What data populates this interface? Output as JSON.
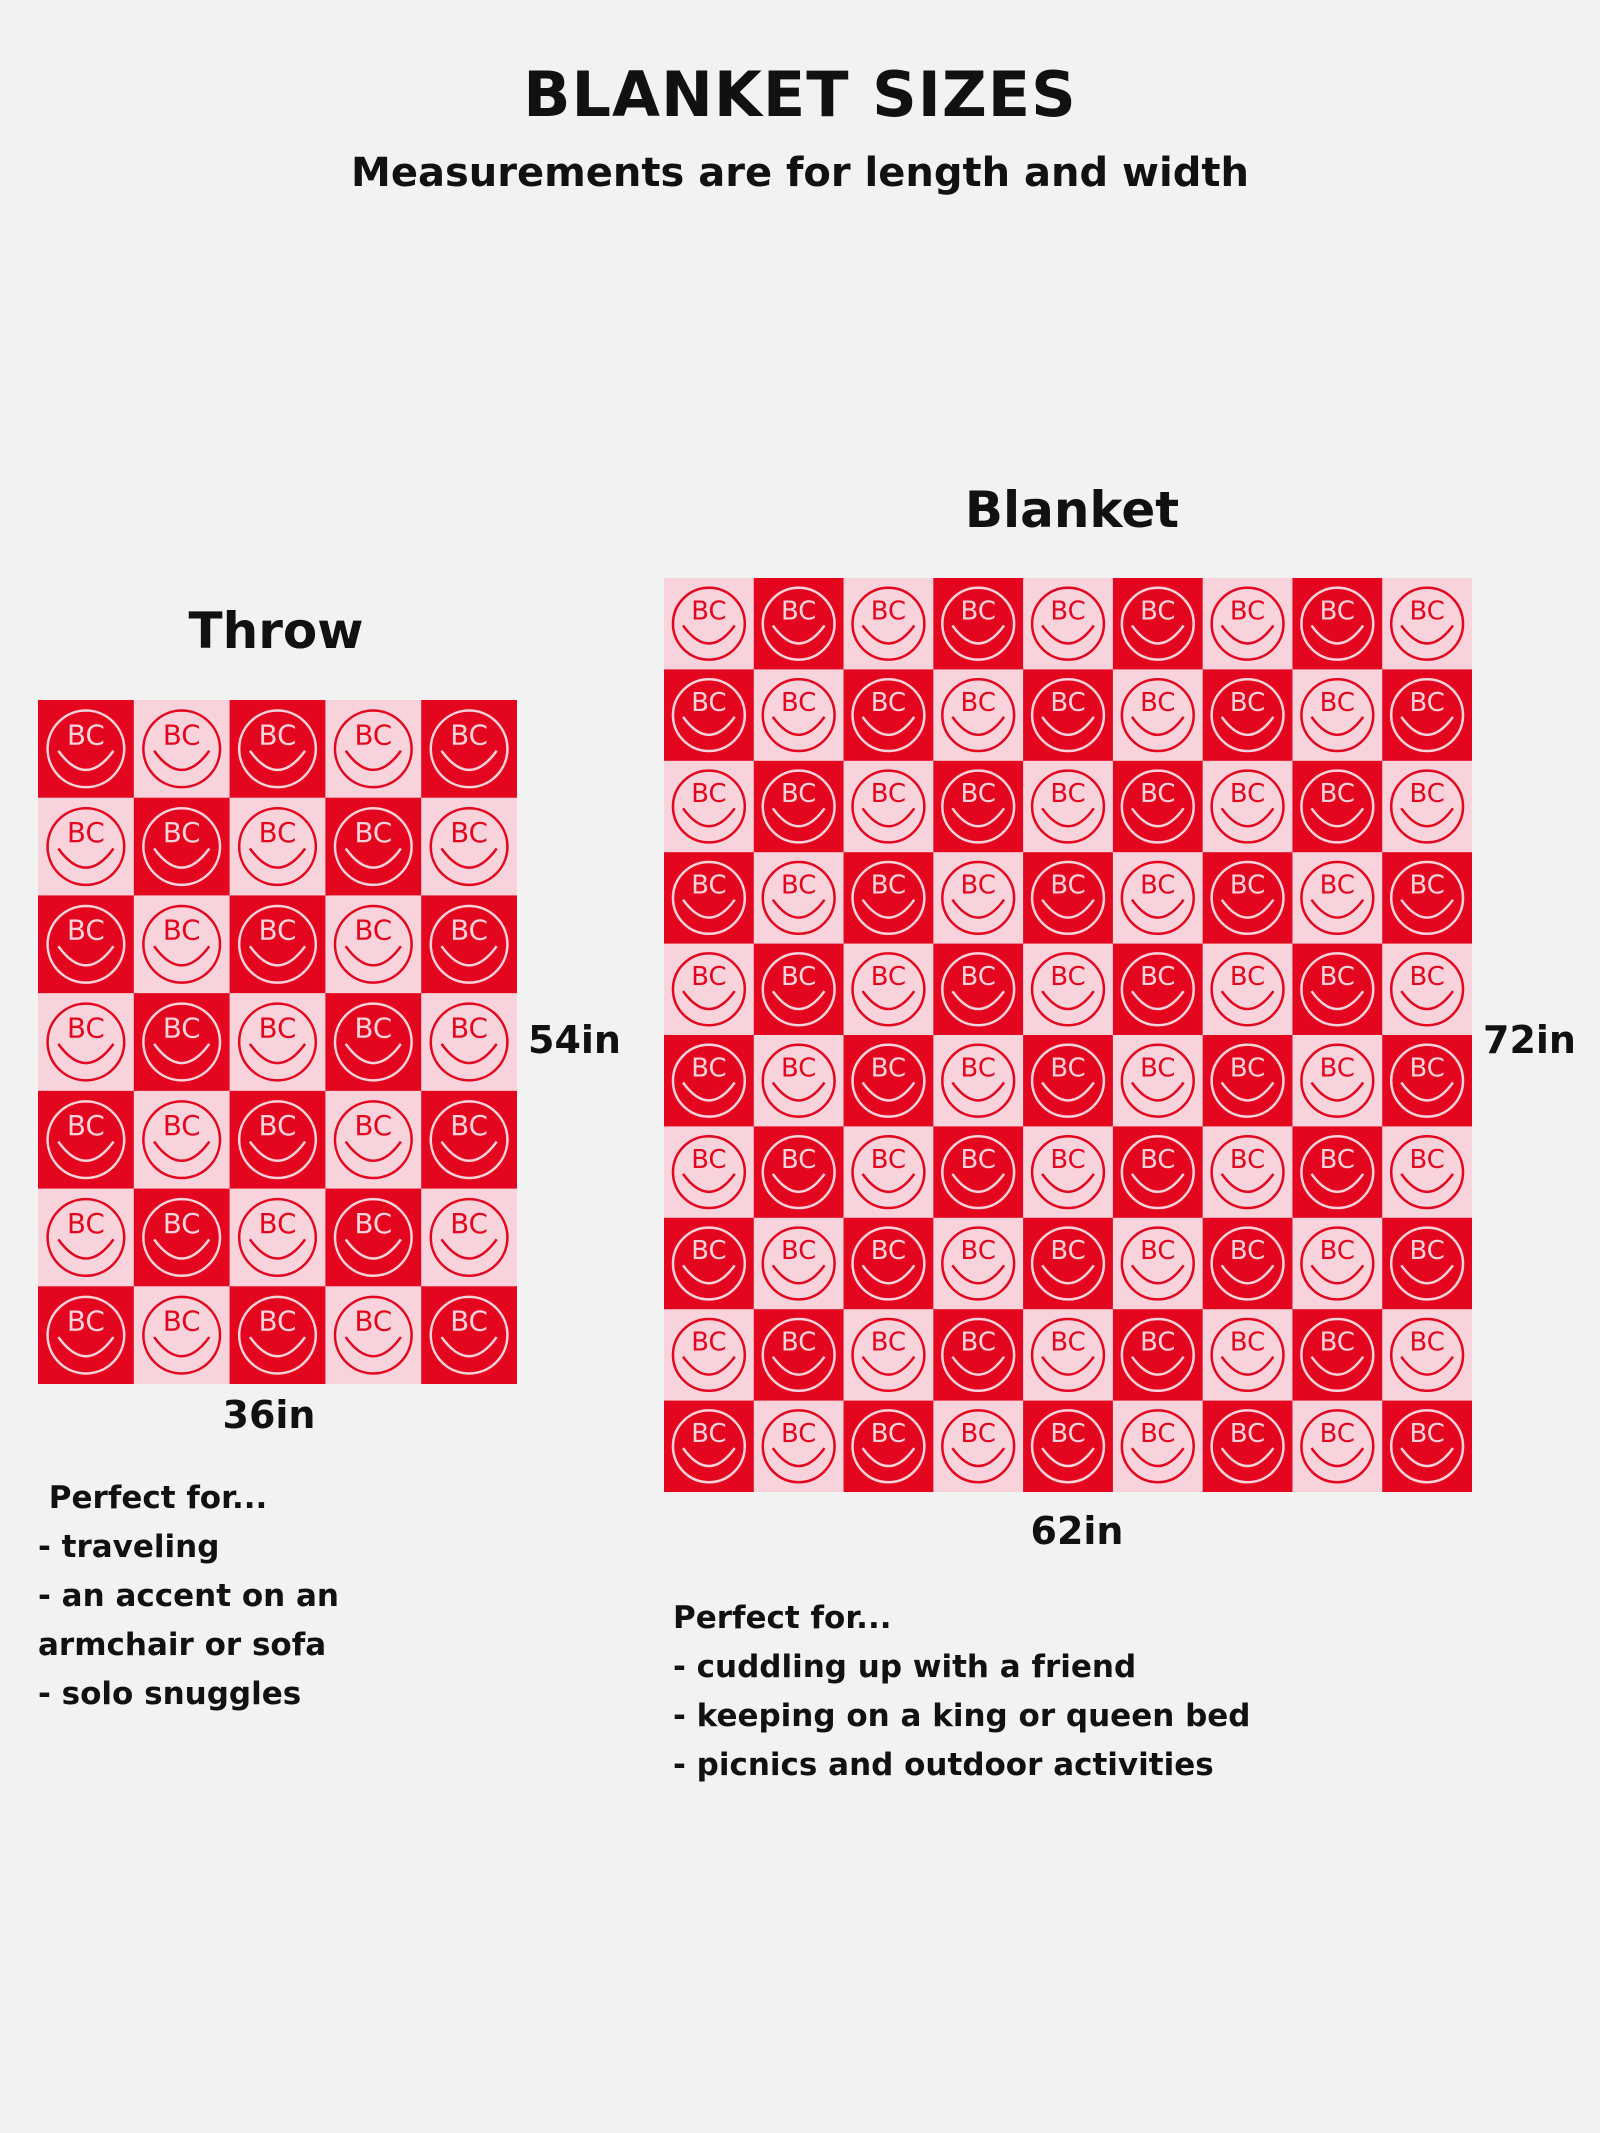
{
  "header": {
    "title": "BLANKET SIZES",
    "subtitle": "Measurements are for length and width"
  },
  "colors": {
    "red": "#e3061e",
    "pink": "#f9d3db",
    "text": "#111111",
    "background": "#f2f2f2"
  },
  "tile_text": "BC",
  "products": [
    {
      "name": "Throw",
      "length": "54in",
      "width": "36in",
      "grid": {
        "cols": 5,
        "rows": 7,
        "first_tile": "red"
      },
      "list_heading": " Perfect for...",
      "uses": [
        "- traveling",
        "- an accent on an",
        "armchair or sofa",
        "- solo snuggles"
      ]
    },
    {
      "name": "Blanket",
      "length": "72in",
      "width": "62in",
      "grid": {
        "cols": 9,
        "rows": 10,
        "first_tile": "pink"
      },
      "list_heading": "Perfect for...",
      "uses": [
        "- cuddling up with a friend",
        "- keeping on a king or queen bed",
        "- picnics and outdoor activities"
      ]
    }
  ]
}
